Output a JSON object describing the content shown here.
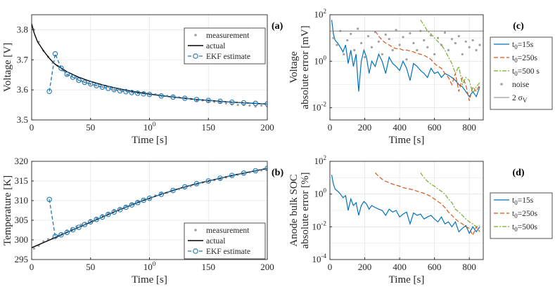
{
  "colors": {
    "actual": "#000000",
    "ekf": "#1f77b4",
    "measurement": "#a0a0a0",
    "t15": "#0072bd",
    "t250": "#d95319",
    "t500": "#77ac30",
    "noise": "#a0a0a0",
    "sigma": "#808080",
    "grid": "#e6e6e6"
  },
  "chart_data": [
    {
      "id": "a",
      "type": "line",
      "panel_label": "(a)",
      "xlabel": "Time [s]",
      "ylabel": "Voltage [V]",
      "xlim": [
        0,
        200
      ],
      "ylim": [
        3.5,
        3.85
      ],
      "xticks": [
        "0",
        "50",
        "100",
        "150",
        "200"
      ],
      "yticks": [
        "3.5",
        "3.6",
        "3.7",
        "3.8"
      ],
      "series": [
        {
          "name": "measurement",
          "kind": "scatter",
          "x": [
            2,
            6,
            10,
            14,
            18,
            22,
            26,
            30,
            34,
            38,
            42,
            46,
            50,
            55,
            60,
            65,
            70,
            75,
            80,
            85,
            90,
            95,
            100,
            105,
            110,
            115,
            120,
            125,
            130,
            135,
            140,
            145,
            150,
            155,
            160,
            165,
            170,
            175,
            180,
            185,
            190,
            195,
            200
          ],
          "y": [
            3.8,
            3.76,
            3.73,
            3.71,
            3.69,
            3.68,
            3.665,
            3.65,
            3.645,
            3.64,
            3.63,
            3.625,
            3.62,
            3.615,
            3.61,
            3.61,
            3.6,
            3.6,
            3.6,
            3.595,
            3.59,
            3.59,
            3.585,
            3.585,
            3.58,
            3.58,
            3.578,
            3.575,
            3.572,
            3.57,
            3.565,
            3.565,
            3.56,
            3.56,
            3.558,
            3.555,
            3.552,
            3.55,
            3.55,
            3.548,
            3.545,
            3.548,
            3.545
          ]
        },
        {
          "name": "actual",
          "kind": "line",
          "x": [
            0,
            2,
            5,
            10,
            15,
            20,
            30,
            40,
            50,
            60,
            70,
            80,
            90,
            100,
            110,
            120,
            130,
            140,
            150,
            160,
            170,
            180,
            190,
            200
          ],
          "y": [
            3.82,
            3.79,
            3.76,
            3.73,
            3.705,
            3.685,
            3.66,
            3.642,
            3.628,
            3.617,
            3.607,
            3.599,
            3.592,
            3.586,
            3.581,
            3.576,
            3.572,
            3.568,
            3.565,
            3.562,
            3.559,
            3.557,
            3.555,
            3.553
          ]
        },
        {
          "name": "EKF estimate",
          "kind": "line-marker",
          "x": [
            15,
            20,
            25,
            30,
            35,
            40,
            45,
            50,
            55,
            60,
            65,
            70,
            75,
            80,
            85,
            90,
            95,
            100,
            110,
            120,
            130,
            140,
            150,
            160,
            170,
            180,
            190,
            200
          ],
          "y": [
            3.595,
            3.72,
            3.672,
            3.652,
            3.642,
            3.632,
            3.625,
            3.62,
            3.614,
            3.609,
            3.605,
            3.601,
            3.597,
            3.594,
            3.591,
            3.589,
            3.587,
            3.585,
            3.58,
            3.576,
            3.572,
            3.568,
            3.565,
            3.562,
            3.559,
            3.557,
            3.555,
            3.553
          ]
        }
      ],
      "legend": [
        "measurement",
        "actual",
        "EKF estimate"
      ]
    },
    {
      "id": "b",
      "type": "line",
      "panel_label": "(b)",
      "xlabel": "Time [s]",
      "ylabel": "Temperature [K]",
      "xlim": [
        0,
        200
      ],
      "ylim": [
        295,
        320
      ],
      "xticks": [
        "0",
        "50",
        "100",
        "150",
        "200"
      ],
      "yticks": [
        "295",
        "300",
        "305",
        "310",
        "315",
        "320"
      ],
      "series": [
        {
          "name": "measurement",
          "kind": "scatter",
          "x": [
            2,
            6,
            10,
            14,
            18,
            22,
            26,
            30,
            34,
            38,
            42,
            46,
            50,
            55,
            60,
            65,
            70,
            75,
            80,
            85,
            90,
            95,
            100,
            105,
            110,
            115,
            120,
            125,
            130,
            135,
            140,
            145,
            150,
            155,
            160,
            165,
            170,
            175,
            180,
            185,
            190,
            195,
            200
          ],
          "y": [
            297.8,
            298.5,
            299.6,
            300.2,
            300.4,
            301.0,
            301.6,
            302.4,
            302.7,
            303.4,
            303.9,
            304.2,
            305.0,
            305.6,
            306.3,
            306.8,
            307.6,
            308.0,
            308.6,
            309.2,
            309.8,
            310.2,
            310.5,
            311.3,
            311.8,
            312.0,
            312.6,
            312.9,
            313.4,
            313.7,
            314.2,
            314.6,
            314.9,
            315.2,
            315.5,
            315.9,
            316.3,
            316.6,
            316.9,
            317.2,
            317.5,
            317.7,
            318.0
          ]
        },
        {
          "name": "actual",
          "kind": "line",
          "x": [
            0,
            10,
            20,
            30,
            40,
            50,
            60,
            70,
            80,
            90,
            100,
            110,
            120,
            130,
            140,
            150,
            160,
            170,
            180,
            190,
            200
          ],
          "y": [
            298.0,
            299.3,
            300.6,
            301.9,
            303.2,
            304.5,
            305.8,
            307.1,
            308.3,
            309.5,
            310.6,
            311.6,
            312.6,
            313.5,
            314.3,
            315.0,
            315.7,
            316.4,
            317.0,
            317.6,
            318.2
          ]
        },
        {
          "name": "EKF estimate",
          "kind": "line-marker",
          "x": [
            15,
            20,
            25,
            30,
            35,
            40,
            45,
            50,
            55,
            60,
            65,
            70,
            75,
            80,
            85,
            90,
            95,
            100,
            110,
            120,
            130,
            140,
            150,
            160,
            170,
            180,
            190,
            200
          ],
          "y": [
            310.3,
            300.9,
            301.3,
            301.9,
            302.6,
            303.2,
            303.9,
            304.6,
            305.2,
            305.8,
            306.5,
            307.1,
            307.7,
            308.3,
            308.9,
            309.5,
            310.1,
            310.6,
            311.6,
            312.6,
            313.5,
            314.3,
            315.0,
            315.7,
            316.4,
            317.0,
            317.6,
            318.2
          ]
        }
      ],
      "legend": [
        "measurement",
        "actual",
        "EKF estimate"
      ]
    },
    {
      "id": "c",
      "type": "line",
      "panel_label": "(c)",
      "xlabel": "Time [s]",
      "ylabel": "Voltage",
      "ylabel2": "absolute error [mV]",
      "yscale": "log",
      "xlim": [
        0,
        880
      ],
      "ylim": [
        0.003,
        100
      ],
      "xticks": [
        "0",
        "200",
        "400",
        "600",
        "800"
      ],
      "yticks": [
        "10-2",
        "100",
        "102"
      ],
      "series": [
        {
          "name": "t0=15s",
          "x": [
            10,
            20,
            30,
            45,
            60,
            75,
            90,
            105,
            120,
            135,
            150,
            165,
            180,
            195,
            210,
            225,
            240,
            260,
            280,
            300,
            320,
            340,
            360,
            380,
            400,
            420,
            440,
            460,
            480,
            500,
            520,
            540,
            560,
            580,
            600,
            620,
            640,
            660,
            680,
            700,
            720,
            740,
            760,
            780,
            800,
            820,
            840,
            860
          ],
          "y": [
            60,
            15,
            8,
            6,
            4,
            2.5,
            5,
            0.8,
            3,
            0.6,
            2,
            0.05,
            1,
            3,
            1.5,
            0.3,
            1,
            0.6,
            2,
            1,
            0.3,
            1.5,
            0.8,
            0.6,
            0.4,
            1,
            0.5,
            0.15,
            0.8,
            0.6,
            0.4,
            0.3,
            0.2,
            0.5,
            0.3,
            0.35,
            0.2,
            0.3,
            0.25,
            0.2,
            0.15,
            0.1,
            0.08,
            0.05,
            0.03,
            0.05,
            0.03,
            0.08
          ]
        },
        {
          "name": "t0=250s",
          "x": [
            260,
            280,
            300,
            320,
            340,
            360,
            380,
            400,
            420,
            440,
            460,
            480,
            500,
            520,
            540,
            560,
            580,
            600,
            620,
            640,
            660,
            680,
            700,
            720,
            740,
            760,
            780,
            800,
            820,
            840,
            860
          ],
          "y": [
            20,
            12,
            8,
            6,
            5,
            4,
            3.5,
            3.5,
            3,
            3,
            2.8,
            2.5,
            2.2,
            2,
            1.8,
            1.5,
            1.2,
            0.8,
            0.6,
            0.5,
            0.3,
            0.2,
            0.1,
            0.3,
            0.05,
            0.2,
            0.1,
            0.02,
            0.08,
            0.05,
            0.1
          ]
        },
        {
          "name": "t0=500 s",
          "x": [
            520,
            540,
            560,
            580,
            600,
            620,
            640,
            660,
            680,
            700,
            720,
            740,
            760,
            780,
            800,
            820,
            840,
            860
          ],
          "y": [
            60,
            35,
            20,
            15,
            10,
            7,
            5,
            3,
            1.5,
            0.8,
            0.3,
            0.6,
            0.1,
            0.2,
            0.15,
            0.04,
            0.08,
            0.12
          ]
        },
        {
          "name": "noise",
          "kind": "scatter",
          "x": [
            20,
            40,
            60,
            80,
            100,
            120,
            140,
            160,
            180,
            200,
            220,
            240,
            260,
            280,
            300,
            320,
            340,
            360,
            380,
            400,
            420,
            440,
            460,
            480,
            500,
            520,
            540,
            560,
            580,
            600,
            620,
            640,
            660,
            680,
            700,
            720,
            740,
            760,
            780,
            800,
            820,
            840,
            860
          ],
          "y": [
            10,
            5,
            20,
            2,
            8,
            15,
            3,
            25,
            6,
            1.5,
            12,
            4,
            18,
            7,
            2,
            14,
            9,
            3,
            22,
            5,
            11,
            1.2,
            16,
            6,
            3,
            20,
            8,
            4,
            13,
            2,
            10,
            5,
            17,
            3,
            9,
            6,
            12,
            2,
            7,
            4,
            8,
            3,
            5
          ]
        },
        {
          "name": "2 σV",
          "x": [
            0,
            880
          ],
          "y": [
            20,
            20
          ]
        }
      ],
      "legend": [
        "t0=15s",
        "t0=250s",
        "t0=500 s",
        "noise",
        "2 σV"
      ]
    },
    {
      "id": "d",
      "type": "line",
      "panel_label": "(d)",
      "xlabel": "Time [s]",
      "ylabel": "Anode bulk SOC",
      "ylabel2": "absolute error [%]",
      "yscale": "log",
      "xlim": [
        0,
        880
      ],
      "ylim": [
        0.0001,
        100
      ],
      "xticks": [
        "0",
        "200",
        "400",
        "600",
        "800"
      ],
      "yticks": [
        "10-4",
        "10-2",
        "100",
        "102"
      ],
      "series": [
        {
          "name": "t0=15s",
          "x": [
            10,
            20,
            30,
            45,
            60,
            75,
            90,
            105,
            120,
            135,
            150,
            165,
            180,
            195,
            210,
            225,
            240,
            260,
            280,
            300,
            320,
            340,
            360,
            380,
            400,
            420,
            440,
            460,
            480,
            500,
            520,
            540,
            560,
            580,
            600,
            620,
            640,
            660,
            680,
            700,
            720,
            740,
            760,
            780,
            800,
            820,
            840,
            860
          ],
          "y": [
            15,
            4,
            2,
            1.5,
            1,
            0.6,
            0.8,
            0.1,
            0.5,
            0.2,
            0.3,
            0.05,
            0.2,
            0.35,
            0.25,
            0.12,
            0.2,
            0.15,
            0.12,
            0.1,
            0.05,
            0.12,
            0.08,
            0.1,
            0.04,
            0.06,
            0.08,
            0.015,
            0.07,
            0.05,
            0.06,
            0.03,
            0.04,
            0.05,
            0.03,
            0.02,
            0.04,
            0.015,
            0.02,
            0.01,
            0.02,
            0.005,
            0.008,
            0.012,
            0.004,
            0.01,
            0.005,
            0.01
          ]
        },
        {
          "name": "t0=250s",
          "x": [
            260,
            280,
            300,
            320,
            340,
            360,
            380,
            400,
            420,
            440,
            460,
            480,
            500,
            520,
            540,
            560,
            580,
            600,
            620,
            640,
            660,
            680,
            700,
            720,
            740,
            760,
            780,
            800,
            820,
            840,
            860
          ],
          "y": [
            20,
            12,
            8,
            6,
            5,
            4,
            3.5,
            3,
            2.5,
            2.2,
            2,
            1.8,
            1.5,
            1.3,
            1.1,
            0.9,
            0.7,
            0.5,
            0.35,
            0.25,
            0.15,
            0.08,
            0.05,
            0.03,
            0.02,
            0.015,
            0.01,
            0.008,
            0.003,
            0.01,
            0.005
          ]
        },
        {
          "name": "t0=500s",
          "x": [
            520,
            540,
            560,
            580,
            600,
            620,
            640,
            660,
            680,
            700,
            720,
            740,
            760,
            780,
            800,
            820,
            840,
            860
          ],
          "y": [
            20,
            10,
            6,
            4,
            3,
            2,
            1.5,
            1,
            0.5,
            0.3,
            0.12,
            0.08,
            0.05,
            0.03,
            0.02,
            0.015,
            0.01,
            0.012
          ]
        }
      ],
      "legend": [
        "t0=15s",
        "t0=250s",
        "t0=500s"
      ]
    }
  ]
}
